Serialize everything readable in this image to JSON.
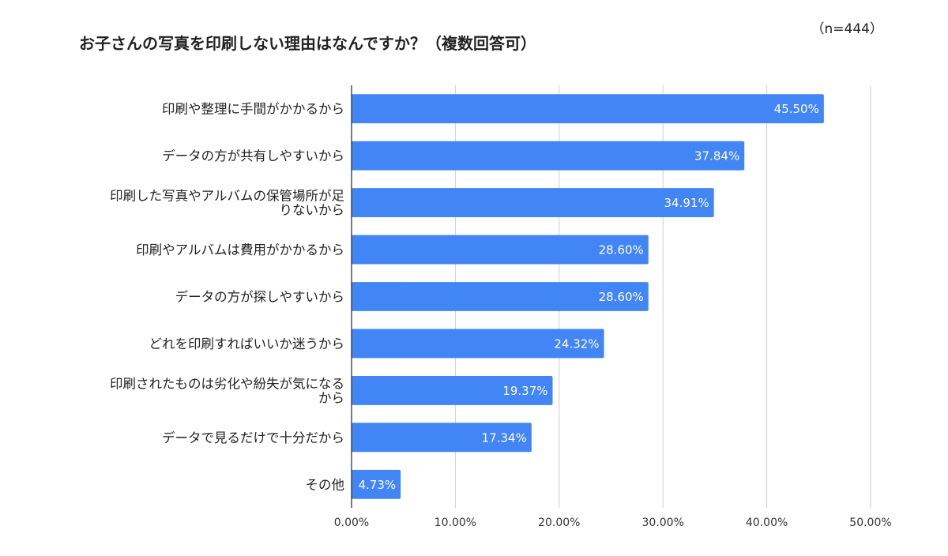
{
  "chart_data": {
    "type": "bar",
    "orientation": "horizontal",
    "title": "お子さんの写真を印刷しない理由はなんですか？（複数回答可）",
    "note": "（n=444）",
    "categories": [
      [
        "印刷や整理に手間がかかるから"
      ],
      [
        "データの方が共有しやすいから"
      ],
      [
        "印刷した写真やアルバムの保管場所が足",
        "りないから"
      ],
      [
        "印刷やアルバムは費用がかかるから"
      ],
      [
        "データの方が探しやすいから"
      ],
      [
        "どれを印刷すればいいか迷うから"
      ],
      [
        "印刷されたものは劣化や紛失が気になる",
        "から"
      ],
      [
        "データで見るだけで十分だから"
      ],
      [
        "その他"
      ]
    ],
    "values": [
      45.5,
      37.84,
      34.91,
      28.6,
      28.6,
      24.32,
      19.37,
      17.34,
      4.73
    ],
    "data_labels": [
      "45.50%",
      "37.84%",
      "34.91%",
      "28.60%",
      "28.60%",
      "24.32%",
      "19.37%",
      "17.34%",
      "4.73%"
    ],
    "xlim": [
      0,
      50
    ],
    "x_ticks": [
      0,
      10,
      20,
      30,
      40,
      50
    ],
    "x_tick_labels": [
      "0.00%",
      "10.00%",
      "20.00%",
      "30.00%",
      "40.00%",
      "50.00%"
    ],
    "grid": true,
    "bar_color": "#4285f4",
    "legend": "none"
  }
}
